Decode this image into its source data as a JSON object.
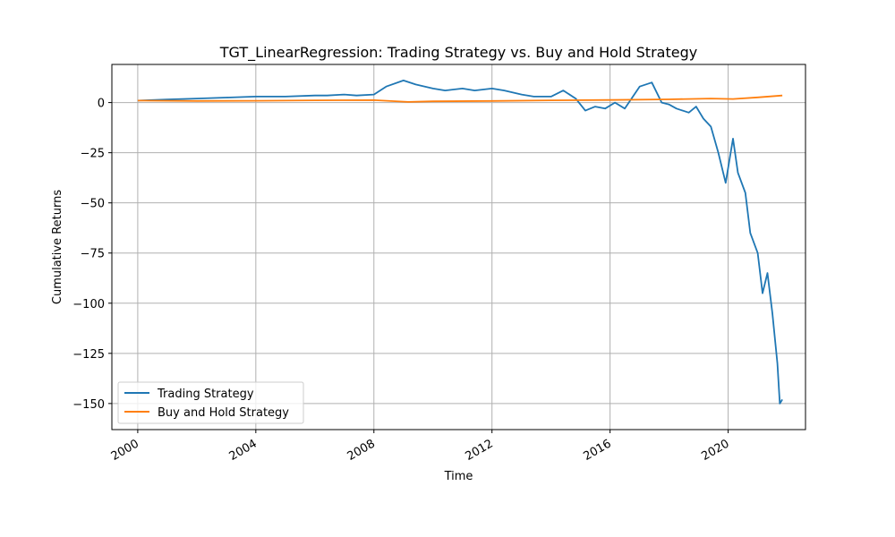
{
  "chart_data": {
    "type": "line",
    "title": "TGT_LinearRegression: Trading Strategy vs. Buy and Hold Strategy",
    "xlabel": "Time",
    "ylabel": "Cumulative Returns",
    "x_axis": "date",
    "xlim": [
      "1999-02-15",
      "2022-08-15"
    ],
    "ylim": [
      -163,
      19
    ],
    "xticks": [
      {
        "label": "2000",
        "date": "2000-01-01"
      },
      {
        "label": "2004",
        "date": "2004-01-01"
      },
      {
        "label": "2008",
        "date": "2008-01-01"
      },
      {
        "label": "2012",
        "date": "2012-01-01"
      },
      {
        "label": "2016",
        "date": "2016-01-01"
      },
      {
        "label": "2020",
        "date": "2020-01-01"
      }
    ],
    "yticks": [
      0,
      -25,
      -50,
      -75,
      -100,
      -125,
      -150
    ],
    "grid": true,
    "legend": "lower-left",
    "colors": {
      "trading": "#1f77b4",
      "buyhold": "#ff7f0e",
      "grid": "#b0b0b0"
    },
    "series": [
      {
        "name": "Trading Strategy",
        "color": "#1f77b4",
        "x": [
          "2000-01-01",
          "2001-01-01",
          "2002-01-01",
          "2003-01-01",
          "2004-01-01",
          "2005-01-01",
          "2006-01-01",
          "2006-06-01",
          "2007-01-01",
          "2007-06-01",
          "2008-01-01",
          "2008-06-01",
          "2009-01-01",
          "2009-06-01",
          "2010-01-01",
          "2010-06-01",
          "2011-01-01",
          "2011-06-01",
          "2012-01-01",
          "2012-06-01",
          "2013-01-01",
          "2013-06-01",
          "2014-01-01",
          "2014-06-01",
          "2014-11-01",
          "2015-03-01",
          "2015-07-01",
          "2015-11-01",
          "2016-03-01",
          "2016-07-01",
          "2017-01-01",
          "2017-06-01",
          "2017-10-01",
          "2018-01-01",
          "2018-04-01",
          "2018-09-01",
          "2018-12-01",
          "2019-03-01",
          "2019-06-01",
          "2019-09-01",
          "2019-12-01",
          "2020-03-01",
          "2020-05-01",
          "2020-08-01",
          "2020-10-01",
          "2021-01-01",
          "2021-03-01",
          "2021-05-01",
          "2021-07-01",
          "2021-09-01",
          "2021-10-01",
          "2021-11-01"
        ],
        "values": [
          1,
          1.5,
          2,
          2.5,
          3,
          3,
          3.5,
          3.5,
          4,
          3.5,
          4,
          8,
          11,
          9,
          7,
          6,
          7,
          6,
          7,
          6,
          4,
          3,
          3,
          6,
          2,
          -4,
          -2,
          -3,
          0,
          -3,
          8,
          10,
          0,
          -1,
          -3,
          -5,
          -2,
          -8,
          -12,
          -25,
          -40,
          -18,
          -35,
          -45,
          -65,
          -75,
          -95,
          -85,
          -105,
          -130,
          -150,
          -148
        ]
      },
      {
        "name": "Buy and Hold Strategy",
        "color": "#ff7f0e",
        "x": [
          "2000-01-01",
          "2002-01-01",
          "2004-01-01",
          "2006-01-01",
          "2008-01-01",
          "2009-03-01",
          "2010-01-01",
          "2012-01-01",
          "2014-01-01",
          "2016-01-01",
          "2018-01-01",
          "2019-06-01",
          "2020-03-01",
          "2021-01-01",
          "2021-11-01"
        ],
        "values": [
          1,
          0.8,
          0.9,
          1.1,
          1.2,
          0.3,
          0.6,
          0.8,
          1.1,
          1.3,
          1.6,
          2,
          1.8,
          2.6,
          3.5
        ]
      }
    ]
  }
}
